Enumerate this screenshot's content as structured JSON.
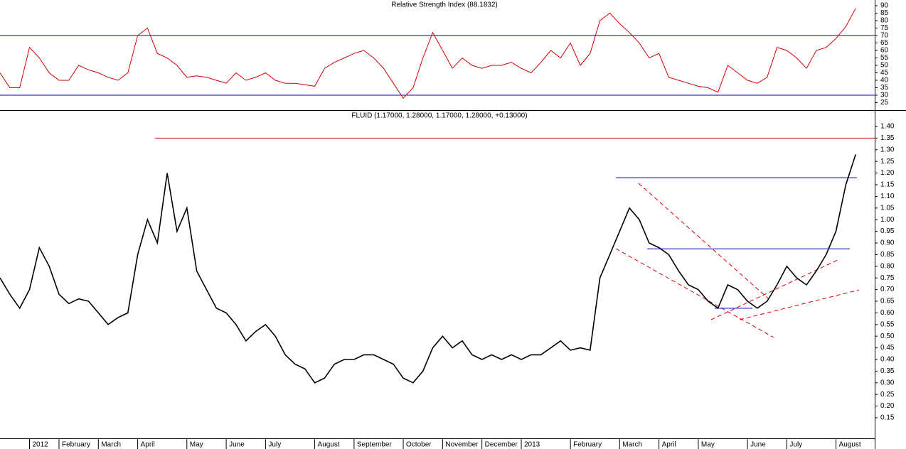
{
  "chart_data": [
    {
      "type": "line",
      "title": "Relative Strength Index (88.1832)",
      "color": "#d00000",
      "ylim": [
        22,
        93
      ],
      "yticks": [
        25,
        30,
        35,
        40,
        45,
        50,
        55,
        60,
        65,
        70,
        75,
        80,
        85,
        90
      ],
      "levels": [
        70,
        30
      ],
      "level_color": "#0000c0",
      "values": [
        45,
        35,
        35,
        62,
        55,
        45,
        40,
        40,
        50,
        47,
        45,
        42,
        40,
        45,
        70,
        75,
        58,
        55,
        50,
        42,
        43,
        42,
        40,
        38,
        45,
        40,
        42,
        45,
        40,
        38,
        38,
        37,
        36,
        48,
        52,
        55,
        58,
        60,
        55,
        48,
        38,
        28,
        35,
        55,
        72,
        60,
        48,
        55,
        50,
        48,
        50,
        50,
        52,
        48,
        45,
        52,
        60,
        55,
        65,
        50,
        58,
        80,
        85,
        78,
        72,
        65,
        55,
        58,
        42,
        40,
        38,
        36,
        35,
        32,
        50,
        45,
        40,
        38,
        42,
        62,
        60,
        55,
        48,
        60,
        62,
        68,
        76,
        88.1832
      ]
    },
    {
      "type": "line",
      "title": "FLUID (1.17000, 1.28000, 1.17000, 1.28000, +0.13000)",
      "color": "#000000",
      "ylim": [
        0.1,
        1.45
      ],
      "yticks": [
        0.15,
        {
          "value": 0.2,
          "label": "0.20"
        },
        0.25,
        {
          "value": 0.3,
          "label": "0.30"
        },
        0.35,
        {
          "value": 0.4,
          "label": "0.40"
        },
        0.45,
        {
          "value": 0.5,
          "label": "0.50"
        },
        0.55,
        {
          "value": 0.6,
          "label": "0.60"
        },
        0.65,
        {
          "value": 0.7,
          "label": "0.70"
        },
        0.75,
        {
          "value": 0.8,
          "label": "0.80"
        },
        0.85,
        {
          "value": 0.9,
          "label": "0.90"
        },
        0.95,
        {
          "value": 1.0,
          "label": "1.00"
        },
        1.05,
        {
          "value": 1.1,
          "label": "1.10"
        },
        1.15,
        {
          "value": 1.2,
          "label": "1.20"
        },
        1.25,
        {
          "value": 1.3,
          "label": "1.30"
        },
        1.35,
        {
          "value": 1.4,
          "label": "1.40"
        }
      ],
      "hlines": [
        {
          "value": 1.35,
          "color": "#d00000"
        },
        {
          "value": 1.18,
          "color": "#0000c0"
        },
        {
          "value": 0.875,
          "color": "#0000c0"
        },
        {
          "value": 0.62,
          "color": "#0000c0"
        }
      ],
      "categories": [
        null,
        null,
        null,
        "2012",
        null,
        null,
        "February",
        null,
        null,
        null,
        "March",
        null,
        null,
        null,
        "April",
        null,
        null,
        null,
        null,
        "May",
        null,
        null,
        null,
        "June",
        null,
        null,
        null,
        "July",
        null,
        null,
        null,
        null,
        "August",
        null,
        null,
        null,
        "September",
        null,
        null,
        null,
        null,
        "October",
        null,
        null,
        null,
        "November",
        null,
        null,
        null,
        "December",
        null,
        null,
        null,
        "2013",
        null,
        null,
        null,
        null,
        "February",
        null,
        null,
        null,
        null,
        "March",
        null,
        null,
        null,
        "April",
        null,
        null,
        null,
        "May",
        null,
        null,
        null,
        null,
        "June",
        null,
        null,
        null,
        "July",
        null,
        null,
        null,
        null,
        "August",
        null,
        null
      ],
      "values": [
        0.75,
        0.68,
        0.62,
        0.7,
        0.88,
        0.8,
        0.68,
        0.64,
        0.66,
        0.65,
        0.6,
        0.55,
        0.58,
        0.6,
        0.85,
        1.0,
        0.9,
        1.2,
        0.95,
        1.05,
        0.78,
        0.7,
        0.62,
        0.6,
        0.55,
        0.48,
        0.52,
        0.55,
        0.5,
        0.42,
        0.38,
        0.36,
        0.3,
        0.32,
        0.38,
        0.4,
        0.4,
        0.42,
        0.42,
        0.4,
        0.38,
        0.32,
        0.3,
        0.35,
        0.45,
        0.5,
        0.45,
        0.48,
        0.42,
        0.4,
        0.42,
        0.4,
        0.42,
        0.4,
        0.42,
        0.42,
        0.45,
        0.48,
        0.44,
        0.45,
        0.44,
        0.75,
        0.85,
        0.95,
        1.05,
        1.0,
        0.9,
        0.88,
        0.85,
        0.78,
        0.72,
        0.7,
        0.65,
        0.62,
        0.72,
        0.7,
        0.65,
        0.62,
        0.65,
        0.72,
        0.8,
        0.75,
        0.72,
        0.78,
        0.85,
        0.95,
        1.15,
        1.28
      ]
    }
  ]
}
